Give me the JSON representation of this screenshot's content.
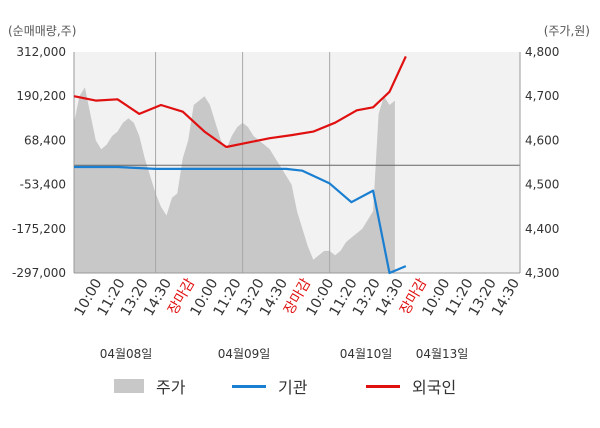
{
  "units": {
    "left": "(순매매량,주)",
    "right": "(주가,원)"
  },
  "legend": {
    "price": "주가",
    "institution": "기관",
    "foreign": "외국인"
  },
  "chart_data": {
    "type": "area+line",
    "left_axis": {
      "ticks": [
        312000,
        190200,
        68400,
        -53400,
        -175200,
        -297000
      ],
      "tick_labels": [
        "312,000",
        "190,200",
        "68,400",
        "-53,400",
        "-175,200",
        "-297,000"
      ],
      "range": [
        -297000,
        312000
      ]
    },
    "right_axis": {
      "ticks": [
        4800,
        4700,
        4600,
        4500,
        4400,
        4300
      ],
      "tick_labels": [
        "4,800",
        "4,700",
        "4,600",
        "4,500",
        "4,400",
        "4,300"
      ],
      "range": [
        4300,
        4800
      ]
    },
    "x_tick_labels": [
      "10:00",
      "11:20",
      "13:20",
      "14:30",
      "장마감",
      "10:00",
      "11:20",
      "13:20",
      "14:30",
      "장마감",
      "10:00",
      "11:20",
      "13:20",
      "14:30",
      "장마감",
      "10:00",
      "11:20",
      "13:20",
      "14:30"
    ],
    "close_label": "장마감",
    "day_labels": [
      "04월08일",
      "04월09일",
      "04월10일",
      "04월13일"
    ],
    "colors": {
      "price_area": "#c8c8c8",
      "institution": "#1a7fd1",
      "foreign": "#e01010",
      "close_label": "#e01010"
    },
    "price_series": {
      "name": "주가",
      "values": [
        4640,
        4700,
        4720,
        4660,
        4600,
        4580,
        4590,
        4610,
        4620,
        4640,
        4650,
        4640,
        4610,
        4560,
        4520,
        4480,
        4450,
        4430,
        4470,
        4480,
        4560,
        4600,
        4680,
        4690,
        4700,
        4680,
        4640,
        4600,
        4580,
        4610,
        4630,
        4640,
        4630,
        4610,
        4600,
        4590,
        4580,
        4560,
        4540,
        4520,
        4500,
        4440,
        4400,
        4360,
        4330,
        4340,
        4350,
        4350,
        4340,
        4350,
        4370,
        4380,
        4390,
        4400,
        4420,
        4440,
        4660,
        4700,
        4680,
        4690
      ]
    },
    "institution_series": {
      "name": "기관",
      "x": [
        0,
        8,
        15,
        23,
        39,
        42,
        47,
        51,
        55,
        58,
        61
      ],
      "values": [
        -5000,
        -5000,
        -10000,
        -10000,
        -10000,
        -15000,
        -50000,
        -102000,
        -70000,
        -297000,
        -278000
      ]
    },
    "foreign_series": {
      "name": "외국인",
      "x": [
        0,
        4,
        8,
        12,
        16,
        20,
        24,
        28,
        32,
        36,
        40,
        44,
        48,
        52,
        55,
        58,
        61
      ],
      "values": [
        4700,
        4690,
        4693,
        4660,
        4680,
        4665,
        4620,
        4585,
        4595,
        4605,
        4612,
        4620,
        4640,
        4668,
        4675,
        4710,
        4790
      ]
    },
    "day_divider_x": [
      15,
      31,
      47
    ],
    "x_slots": 82,
    "grid": false
  }
}
